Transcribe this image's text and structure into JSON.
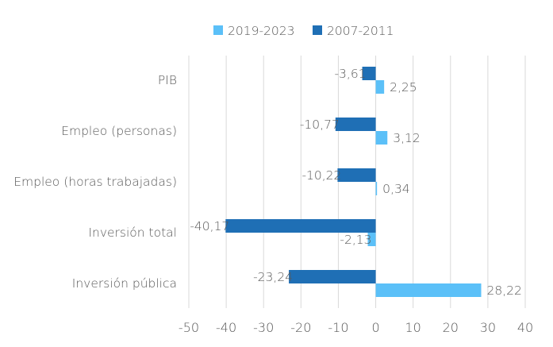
{
  "chart_data": {
    "type": "bar",
    "orientation": "horizontal",
    "title": "",
    "xlabel": "",
    "ylabel": "",
    "xlim": [
      -50,
      40
    ],
    "xticks": [
      -50,
      -40,
      -30,
      -20,
      -10,
      0,
      10,
      20,
      30,
      40
    ],
    "grid": true,
    "legend_position": "top",
    "categories": [
      "PIB",
      "Empleo (personas)",
      "Empleo (horas trabajadas)",
      "Inversión total",
      "Inversión pública"
    ],
    "series": [
      {
        "name": "2019-2023",
        "color": "#5bc0f8",
        "values": [
          2.25,
          3.12,
          0.34,
          -2.13,
          28.22
        ],
        "labels": [
          "2,25",
          "3,12",
          "0,34",
          "-2,13",
          "28,22"
        ]
      },
      {
        "name": "2007-2011",
        "color": "#1f6fb5",
        "values": [
          -3.61,
          -10.77,
          -10.22,
          -40.17,
          -23.24
        ],
        "labels": [
          "-3,61",
          "-10,77",
          "-10,22",
          "-40,17",
          "-23,24"
        ]
      }
    ]
  }
}
